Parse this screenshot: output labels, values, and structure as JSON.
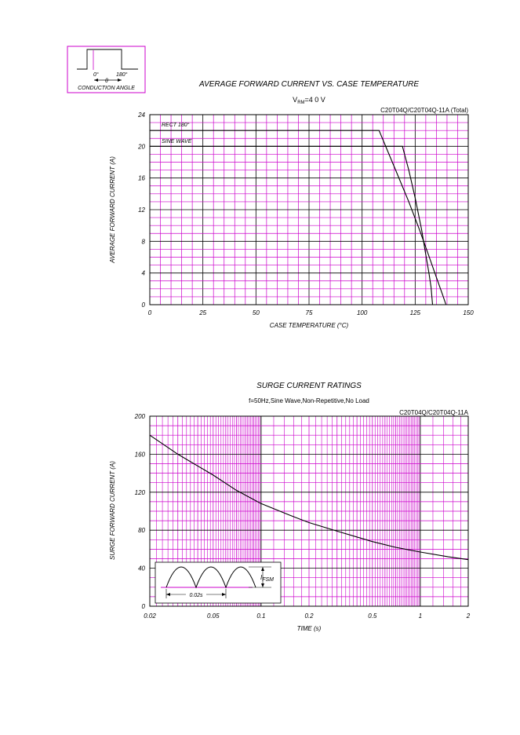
{
  "conduction_box": {
    "angle_left": "0°",
    "angle_right": "180°",
    "theta": "θ",
    "caption": "CONDUCTION ANGLE"
  },
  "colors": {
    "grid": "#cc00cc",
    "major_grid": "#000000",
    "curve": "#000000"
  },
  "chart_data": [
    {
      "type": "line",
      "title": "AVERAGE FORWARD CURRENT VS. CASE TEMPERATURE",
      "subtitle": "V RM = 4 0 V",
      "subtitle_main": "V",
      "subtitle_sub": "RM",
      "subtitle_rest": "=4 0 V",
      "part_label": "C20T04Q/C20T04Q-11A (Total)",
      "xlabel": "CASE TEMPERATURE (°C)",
      "ylabel": "AVERAGE FORWARD CURRENT (A)",
      "xlim": [
        0,
        150
      ],
      "ylim": [
        0,
        24
      ],
      "x_ticks": [
        0,
        25,
        50,
        75,
        100,
        125,
        150
      ],
      "y_ticks": [
        0,
        4,
        8,
        12,
        16,
        20,
        24
      ],
      "grid": true,
      "series": [
        {
          "name": "RECT 180°",
          "x": [
            0,
            108,
            115,
            122,
            127,
            131,
            134,
            136,
            138,
            139.5
          ],
          "y": [
            22,
            22,
            17.5,
            13,
            9.5,
            6.5,
            4.2,
            2.7,
            1.2,
            0
          ]
        },
        {
          "name": "SINE WAVE",
          "x": [
            0,
            119,
            122,
            125,
            128,
            130,
            131.5,
            132.5,
            133.2
          ],
          "y": [
            20,
            20,
            17,
            13.5,
            9.5,
            6.3,
            4,
            2.2,
            0
          ]
        }
      ]
    },
    {
      "type": "line",
      "title": "SURGE CURRENT RATINGS",
      "subtitle": "f=50Hz,Sine Wave,Non-Repetitive,No Load",
      "part_label": "C20T04Q/C20T04Q-11A",
      "xlabel": "TIME (s)",
      "ylabel": "SURGE FORWARD CURRENT (A)",
      "xscale": "log",
      "xlim": [
        0.02,
        2
      ],
      "ylim": [
        0,
        200
      ],
      "x_ticks": [
        0.02,
        0.05,
        0.1,
        0.2,
        0.5,
        1,
        2
      ],
      "x_tick_labels": [
        "0.02",
        "0.05",
        "0.1",
        "0.2",
        "0.5",
        "1",
        "2"
      ],
      "y_ticks": [
        0,
        40,
        80,
        120,
        160,
        200
      ],
      "grid": true,
      "series": [
        {
          "x": [
            0.02,
            0.03,
            0.05,
            0.07,
            0.1,
            0.15,
            0.2,
            0.3,
            0.5,
            0.7,
            1,
            1.5,
            2
          ],
          "y": [
            180,
            160,
            138,
            122,
            108,
            96,
            88,
            79,
            68,
            62,
            57,
            52,
            49
          ]
        }
      ],
      "inset": {
        "label_i": "I",
        "label_sub": "FSM",
        "period": "0.02s"
      }
    }
  ]
}
